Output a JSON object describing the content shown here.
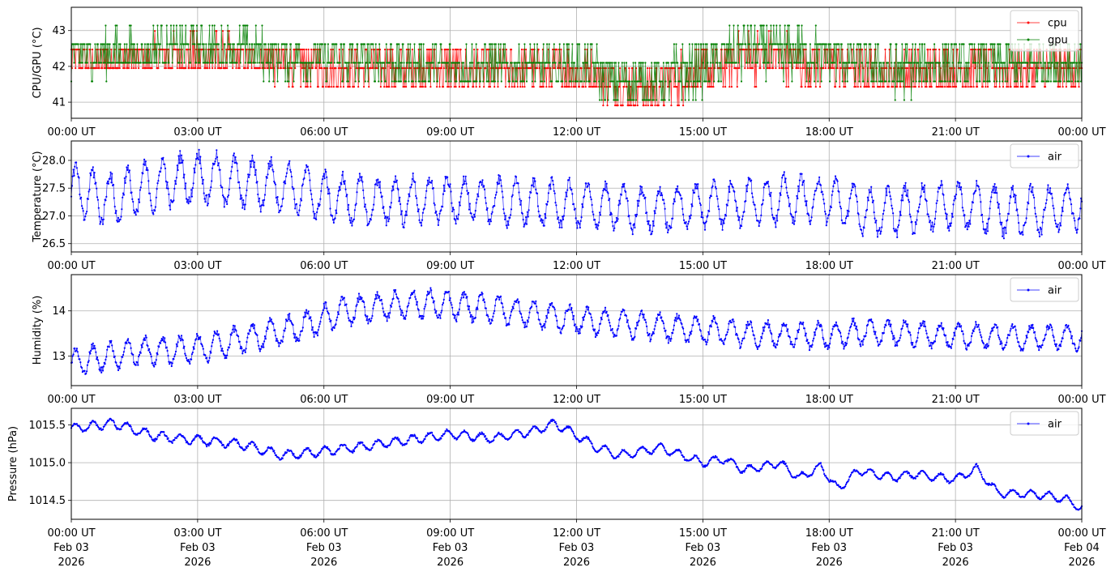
{
  "chart_data": [
    {
      "type": "line",
      "ylabel": "CPU/GPU (°C)",
      "xlim": [
        "2026-02-03T00:00",
        "2026-02-04T00:00"
      ],
      "ylim": [
        40.55,
        43.65
      ],
      "yticks": [
        "41",
        "42",
        "43"
      ],
      "grid": true,
      "legend": "top-right",
      "series": [
        {
          "name": "cpu",
          "color": "#ff0000",
          "base": 41.95,
          "quant": 0.52,
          "ph": 0.3,
          "trend": [
            [
              0,
              42.1
            ],
            [
              3,
              42.35
            ],
            [
              6,
              42.0
            ],
            [
              9,
              41.9
            ],
            [
              12,
              41.9
            ],
            [
              13.5,
              41.35
            ],
            [
              15,
              41.85
            ],
            [
              16,
              42.3
            ],
            [
              18,
              42.1
            ],
            [
              19.5,
              41.75
            ],
            [
              21,
              42.0
            ],
            [
              22.5,
              41.9
            ],
            [
              24,
              41.95
            ]
          ],
          "swing": [
            [
              0,
              0.45
            ],
            [
              12,
              0.5
            ],
            [
              14,
              0.6
            ],
            [
              18,
              0.55
            ],
            [
              24,
              0.5
            ]
          ]
        },
        {
          "name": "gpu",
          "color": "#008000",
          "base": 42.1,
          "quant": 0.52,
          "ph": 1.9,
          "trend": [
            [
              0,
              42.3
            ],
            [
              3,
              42.55
            ],
            [
              6,
              42.2
            ],
            [
              9,
              42.0
            ],
            [
              12,
              42.0
            ],
            [
              13.5,
              41.45
            ],
            [
              15,
              42.0
            ],
            [
              16,
              42.45
            ],
            [
              18,
              42.3
            ],
            [
              19.5,
              41.85
            ],
            [
              21,
              42.15
            ],
            [
              22.5,
              42.05
            ],
            [
              24,
              42.1
            ]
          ],
          "swing": [
            [
              0,
              0.5
            ],
            [
              12,
              0.55
            ],
            [
              14,
              0.65
            ],
            [
              18,
              0.6
            ],
            [
              24,
              0.55
            ]
          ]
        }
      ]
    },
    {
      "type": "line",
      "ylabel": "Temperature (°C)",
      "xlim": [
        "2026-02-03T00:00",
        "2026-02-04T00:00"
      ],
      "ylim": [
        26.35,
        28.35
      ],
      "yticks": [
        "26.5",
        "27.0",
        "27.5",
        "28.0"
      ],
      "grid": true,
      "legend": "top-right",
      "series": [
        {
          "name": "air",
          "color": "#0000ff",
          "base": 27.35,
          "trend": [
            [
              0,
              27.45
            ],
            [
              1,
              27.3
            ],
            [
              2,
              27.55
            ],
            [
              3,
              27.7
            ],
            [
              4,
              27.6
            ],
            [
              5,
              27.55
            ],
            [
              6,
              27.35
            ],
            [
              7,
              27.25
            ],
            [
              9,
              27.3
            ],
            [
              12,
              27.2
            ],
            [
              14,
              27.1
            ],
            [
              15,
              27.2
            ],
            [
              17,
              27.3
            ],
            [
              18,
              27.3
            ],
            [
              19,
              27.05
            ],
            [
              21,
              27.2
            ],
            [
              22.5,
              27.05
            ],
            [
              24,
              27.2
            ]
          ],
          "swing": [
            [
              0,
              0.45
            ],
            [
              6,
              0.4
            ],
            [
              12,
              0.38
            ],
            [
              24,
              0.4
            ]
          ]
        }
      ]
    },
    {
      "type": "line",
      "ylabel": "Humidity (%)",
      "xlim": [
        "2026-02-03T00:00",
        "2026-02-04T00:00"
      ],
      "ylim": [
        12.35,
        14.8
      ],
      "yticks": [
        "13",
        "14"
      ],
      "grid": true,
      "legend": "top-right",
      "series": [
        {
          "name": "air",
          "color": "#0000ff",
          "base": 13.5,
          "trend": [
            [
              0,
              12.85
            ],
            [
              1.5,
              13.1
            ],
            [
              3,
              13.15
            ],
            [
              4.5,
              13.45
            ],
            [
              5.5,
              13.65
            ],
            [
              6.5,
              14.0
            ],
            [
              8,
              14.15
            ],
            [
              8.5,
              14.15
            ],
            [
              10,
              14.05
            ],
            [
              12,
              13.8
            ],
            [
              14,
              13.65
            ],
            [
              16,
              13.5
            ],
            [
              18,
              13.45
            ],
            [
              19,
              13.55
            ],
            [
              21,
              13.45
            ],
            [
              24,
              13.4
            ]
          ],
          "swing": [
            [
              0,
              0.28
            ],
            [
              6,
              0.3
            ],
            [
              12,
              0.28
            ],
            [
              24,
              0.25
            ]
          ]
        }
      ]
    },
    {
      "type": "line",
      "ylabel": "Pressure (hPa)",
      "xlim": [
        "2026-02-03T00:00",
        "2026-02-04T00:00"
      ],
      "ylim": [
        1014.25,
        1015.72
      ],
      "yticks": [
        "1014.5",
        "1015.0",
        "1015.5"
      ],
      "grid": true,
      "legend": "top-right",
      "series": [
        {
          "name": "air",
          "color": "#0000ff",
          "base": 1015.2,
          "trend": [
            [
              0,
              1015.45
            ],
            [
              1,
              1015.52
            ],
            [
              2,
              1015.35
            ],
            [
              3,
              1015.3
            ],
            [
              4,
              1015.25
            ],
            [
              5,
              1015.1
            ],
            [
              6,
              1015.15
            ],
            [
              7,
              1015.22
            ],
            [
              8,
              1015.3
            ],
            [
              9,
              1015.38
            ],
            [
              10,
              1015.32
            ],
            [
              11,
              1015.42
            ],
            [
              11.5,
              1015.52
            ],
            [
              12.5,
              1015.2
            ],
            [
              13,
              1015.1
            ],
            [
              14,
              1015.2
            ],
            [
              15,
              1015.0
            ],
            [
              15.5,
              1015.05
            ],
            [
              16,
              1014.9
            ],
            [
              16.8,
              1015.0
            ],
            [
              17.3,
              1014.8
            ],
            [
              17.8,
              1014.95
            ],
            [
              18.2,
              1014.65
            ],
            [
              18.7,
              1014.9
            ],
            [
              19.5,
              1014.8
            ],
            [
              20,
              1014.85
            ],
            [
              21,
              1014.78
            ],
            [
              21.5,
              1014.92
            ],
            [
              22,
              1014.6
            ],
            [
              23,
              1014.58
            ],
            [
              23.6,
              1014.52
            ],
            [
              24,
              1014.4
            ]
          ],
          "swing": [
            [
              0,
              0.06
            ],
            [
              24,
              0.05
            ]
          ]
        }
      ]
    }
  ],
  "xaxis": {
    "ticks": [
      "00:00 UT",
      "03:00 UT",
      "06:00 UT",
      "09:00 UT",
      "12:00 UT",
      "15:00 UT",
      "18:00 UT",
      "21:00 UT",
      "00:00 UT"
    ],
    "bottom_dates": [
      "Feb 03",
      "Feb 03",
      "Feb 03",
      "Feb 03",
      "Feb 03",
      "Feb 03",
      "Feb 03",
      "Feb 03",
      "Feb 04"
    ],
    "bottom_years": [
      "2026",
      "2026",
      "2026",
      "2026",
      "2026",
      "2026",
      "2026",
      "2026",
      "2026"
    ]
  }
}
